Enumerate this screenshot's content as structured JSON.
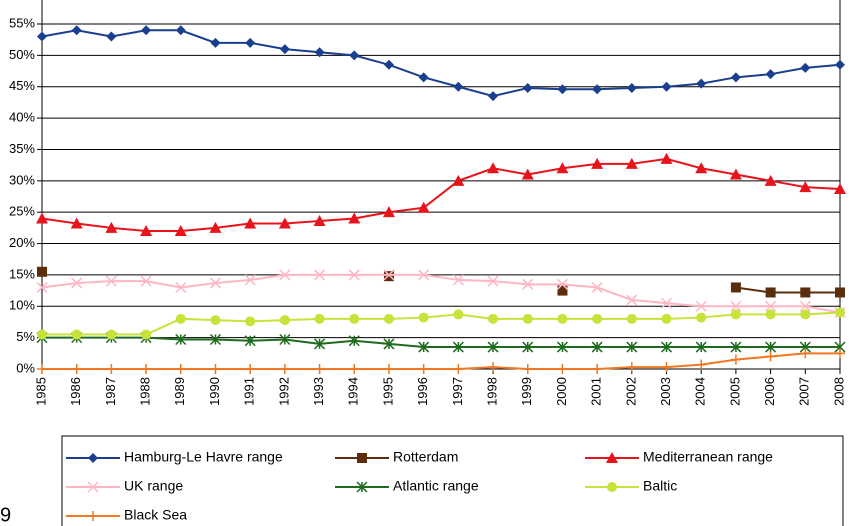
{
  "chart_data": {
    "type": "line",
    "categories": [
      "1985",
      "1986",
      "1987",
      "1988",
      "1989",
      "1990",
      "1991",
      "1992",
      "1993",
      "1994",
      "1995",
      "1996",
      "1997",
      "1998",
      "1999",
      "2000",
      "2001",
      "2002",
      "2003",
      "2004",
      "2005",
      "2006",
      "2007",
      "2008"
    ],
    "series": [
      {
        "name": "Hamburg-Le Havre range",
        "color": "#1a3f8f",
        "marker": "diamond",
        "values": [
          53,
          54,
          53,
          54,
          54,
          52,
          52,
          51,
          50.5,
          50,
          48.5,
          46.5,
          45,
          43.5,
          44.8,
          44.6,
          44.6,
          44.8,
          45,
          45.5,
          46.5,
          47,
          48,
          48.5
        ]
      },
      {
        "name": "Rotterdam",
        "color": "#5a2d0c",
        "marker": "square",
        "values": [
          15.5,
          null,
          null,
          null,
          null,
          null,
          null,
          null,
          null,
          null,
          14.8,
          null,
          null,
          null,
          null,
          12.5,
          null,
          null,
          null,
          null,
          13,
          12.2,
          12.2,
          12.2
        ]
      },
      {
        "name": "Mediterranean range",
        "color": "#e8141c",
        "marker": "triangle",
        "values": [
          24,
          23.2,
          22.5,
          22,
          22,
          22.5,
          23.2,
          23.2,
          23.6,
          24,
          25,
          25.7,
          30,
          32,
          31,
          32,
          32.7,
          32.7,
          33.5,
          32,
          31,
          30,
          29,
          28.7
        ]
      },
      {
        "name": "UK range",
        "color": "#ffb6c4",
        "marker": "x",
        "values": [
          13,
          13.7,
          14,
          14,
          13,
          13.7,
          14.2,
          15,
          15,
          15,
          15,
          15,
          14.2,
          14,
          13.5,
          13.5,
          13,
          11,
          10.5,
          10,
          10,
          10,
          10,
          9
        ]
      },
      {
        "name": "Atlantic range",
        "color": "#1e6b1e",
        "marker": "star",
        "values": [
          5,
          5,
          5,
          5,
          4.7,
          4.7,
          4.5,
          4.7,
          4,
          4.5,
          4,
          3.5,
          3.5,
          3.5,
          3.5,
          3.5,
          3.5,
          3.5,
          3.5,
          3.5,
          3.5,
          3.5,
          3.5,
          3.5
        ]
      },
      {
        "name": "Baltic",
        "color": "#c6e33a",
        "marker": "circle",
        "values": [
          5.5,
          5.5,
          5.5,
          5.5,
          8,
          7.8,
          7.6,
          7.8,
          8,
          8,
          8,
          8.2,
          8.7,
          8,
          8,
          8,
          8,
          8,
          8,
          8.2,
          8.7,
          8.7,
          8.7,
          9
        ]
      },
      {
        "name": "Black Sea",
        "color": "#f07820",
        "marker": "plus",
        "values": [
          0,
          0,
          0,
          0,
          0,
          0,
          0,
          0,
          0,
          0,
          0,
          0,
          0,
          0.3,
          0,
          0,
          0,
          0.3,
          0.3,
          0.7,
          1.5,
          2,
          2.5,
          2.5
        ]
      }
    ],
    "ylim": [
      0,
      55
    ],
    "yticks": [
      {
        "value": 0,
        "label": "0%"
      },
      {
        "value": 5,
        "label": "5%"
      },
      {
        "value": 10,
        "label": "10%"
      },
      {
        "value": 15,
        "label": "15%"
      },
      {
        "value": 20,
        "label": "20%"
      },
      {
        "value": 25,
        "label": "25%"
      },
      {
        "value": 30,
        "label": "30%"
      },
      {
        "value": 35,
        "label": "35%"
      },
      {
        "value": 40,
        "label": "40%"
      },
      {
        "value": 45,
        "label": "45%"
      },
      {
        "value": 50,
        "label": "50%"
      },
      {
        "value": 55,
        "label": "55%"
      }
    ],
    "grid": true,
    "legend": "bottom",
    "annotation": "9"
  }
}
